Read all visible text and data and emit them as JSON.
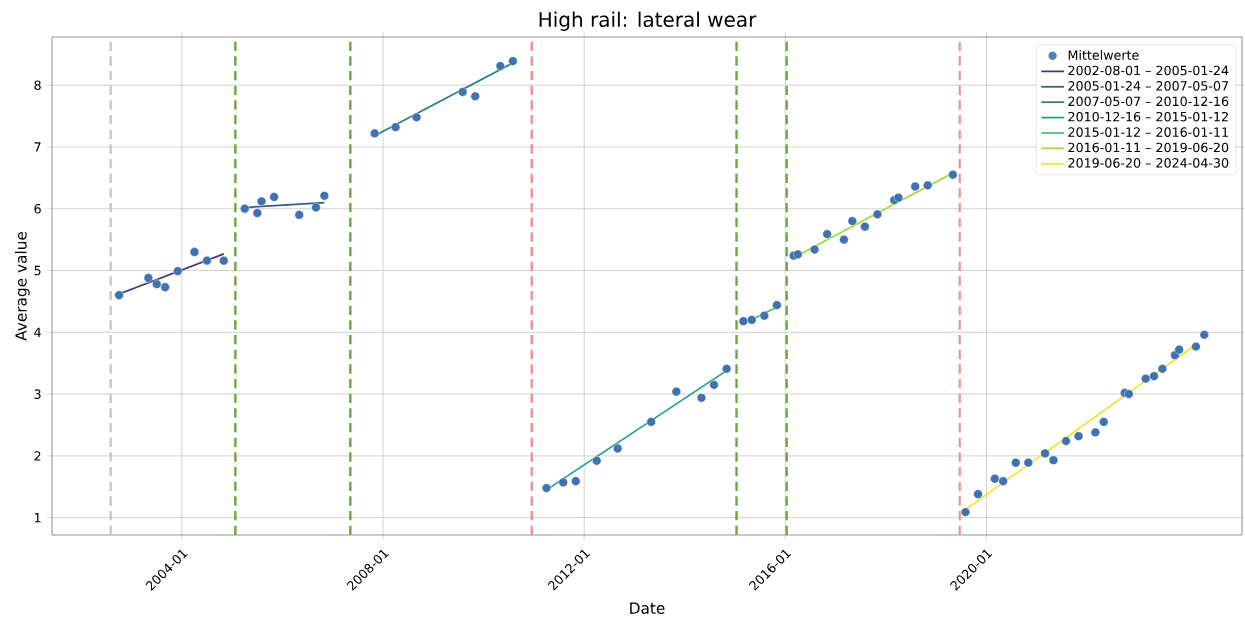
{
  "chart_data": {
    "type": "scatter",
    "title": "High rail: lateral wear",
    "xlabel": "Date",
    "ylabel": "Average value",
    "xlim": [
      "2001-06",
      "2025-02"
    ],
    "ylim": [
      0.72,
      8.78
    ],
    "xticks": [
      "2004-01",
      "2008-01",
      "2012-01",
      "2016-01",
      "2020-01"
    ],
    "yticks": [
      1,
      2,
      3,
      4,
      5,
      6,
      7,
      8
    ],
    "grid": true,
    "legend": "top right",
    "ref_lines": [
      {
        "axis": "x",
        "value": "2002-08-01",
        "color": "#c8c8c8",
        "line_style": "dashed"
      },
      {
        "axis": "x",
        "value": "2005-01-24",
        "color": "#6aaa3a",
        "line_style": "dashed"
      },
      {
        "axis": "x",
        "value": "2007-05-07",
        "color": "#6aaa3a",
        "line_style": "dashed"
      },
      {
        "axis": "x",
        "value": "2010-12-16",
        "color": "#ee918e",
        "line_style": "dashed"
      },
      {
        "axis": "x",
        "value": "2015-01-12",
        "color": "#6aaa3a",
        "line_style": "dashed"
      },
      {
        "axis": "x",
        "value": "2016-01-11",
        "color": "#6aaa3a",
        "line_style": "dashed"
      },
      {
        "axis": "x",
        "value": "2019-06-20",
        "color": "#ee918e",
        "line_style": "dashed"
      }
    ],
    "series": [
      {
        "name": "Mittelwerte",
        "type": "scatter",
        "marker": "circle",
        "color": "#3f72af",
        "x": [
          "2002-10",
          "2003-05",
          "2003-07",
          "2003-09",
          "2003-12",
          "2004-04",
          "2004-07",
          "2004-11",
          "2005-04",
          "2005-07",
          "2005-08",
          "2005-11",
          "2006-05",
          "2006-09",
          "2006-11",
          "2007-11",
          "2008-04",
          "2008-09",
          "2009-08",
          "2009-11",
          "2010-05",
          "2010-08",
          "2011-04",
          "2011-08",
          "2011-11",
          "2012-04",
          "2012-09",
          "2013-05",
          "2013-11",
          "2014-05",
          "2014-08",
          "2014-11",
          "2015-03",
          "2015-05",
          "2015-08",
          "2015-11",
          "2016-03",
          "2016-04",
          "2016-08",
          "2016-11",
          "2017-03",
          "2017-05",
          "2017-08",
          "2017-11",
          "2018-03",
          "2018-04",
          "2018-08",
          "2018-11",
          "2019-05",
          "2019-08",
          "2019-11",
          "2020-03",
          "2020-05",
          "2020-08",
          "2020-11",
          "2021-03",
          "2021-05",
          "2021-08",
          "2021-11",
          "2022-03",
          "2022-05",
          "2022-10",
          "2022-11",
          "2023-03",
          "2023-05",
          "2023-07",
          "2023-10",
          "2023-11",
          "2024-03",
          "2024-05"
        ],
        "values": [
          4.6,
          4.88,
          4.78,
          4.73,
          4.99,
          5.3,
          5.16,
          5.16,
          6.0,
          5.93,
          6.12,
          6.19,
          5.9,
          6.02,
          6.21,
          7.22,
          7.32,
          7.48,
          7.89,
          7.82,
          8.31,
          8.39,
          1.48,
          1.57,
          1.59,
          1.92,
          2.12,
          2.55,
          3.04,
          2.94,
          3.15,
          3.41,
          4.18,
          4.2,
          4.27,
          4.44,
          5.24,
          5.26,
          5.34,
          5.59,
          5.5,
          5.8,
          5.71,
          5.91,
          6.14,
          6.18,
          6.36,
          6.38,
          6.55,
          1.09,
          1.38,
          1.63,
          1.59,
          1.89,
          1.89,
          2.04,
          1.93,
          2.24,
          2.32,
          2.38,
          2.55,
          3.02,
          3.0,
          3.25,
          3.29,
          3.41,
          3.63,
          3.72,
          3.77,
          3.96
        ]
      },
      {
        "name": "2002-08-01 – 2005-01-24",
        "type": "line",
        "color": "#46327e",
        "x": [
          "2002-10",
          "2004-11"
        ],
        "values": [
          4.62,
          5.27
        ]
      },
      {
        "name": "2005-01-24 – 2007-05-07",
        "type": "line",
        "color": "#365c8d",
        "x": [
          "2005-04",
          "2006-11"
        ],
        "values": [
          6.02,
          6.1
        ]
      },
      {
        "name": "2007-05-07 – 2010-12-16",
        "type": "line",
        "color": "#277f8e",
        "x": [
          "2007-11",
          "2010-08"
        ],
        "values": [
          7.18,
          8.36
        ]
      },
      {
        "name": "2010-12-16 – 2015-01-12",
        "type": "line",
        "color": "#1fa187",
        "x": [
          "2011-04",
          "2014-11"
        ],
        "values": [
          1.45,
          3.38
        ]
      },
      {
        "name": "2015-01-12 – 2016-01-11",
        "type": "line",
        "color": "#4ac16d",
        "x": [
          "2015-03",
          "2015-11"
        ],
        "values": [
          4.14,
          4.41
        ]
      },
      {
        "name": "2016-01-11 – 2019-06-20",
        "type": "line",
        "color": "#a0da39",
        "x": [
          "2016-03",
          "2019-05"
        ],
        "values": [
          5.21,
          6.58
        ]
      },
      {
        "name": "2019-06-20 – 2024-04-30",
        "type": "line",
        "color": "#f5e22a",
        "x": [
          "2019-08",
          "2024-03"
        ],
        "values": [
          1.13,
          3.8
        ]
      }
    ]
  }
}
